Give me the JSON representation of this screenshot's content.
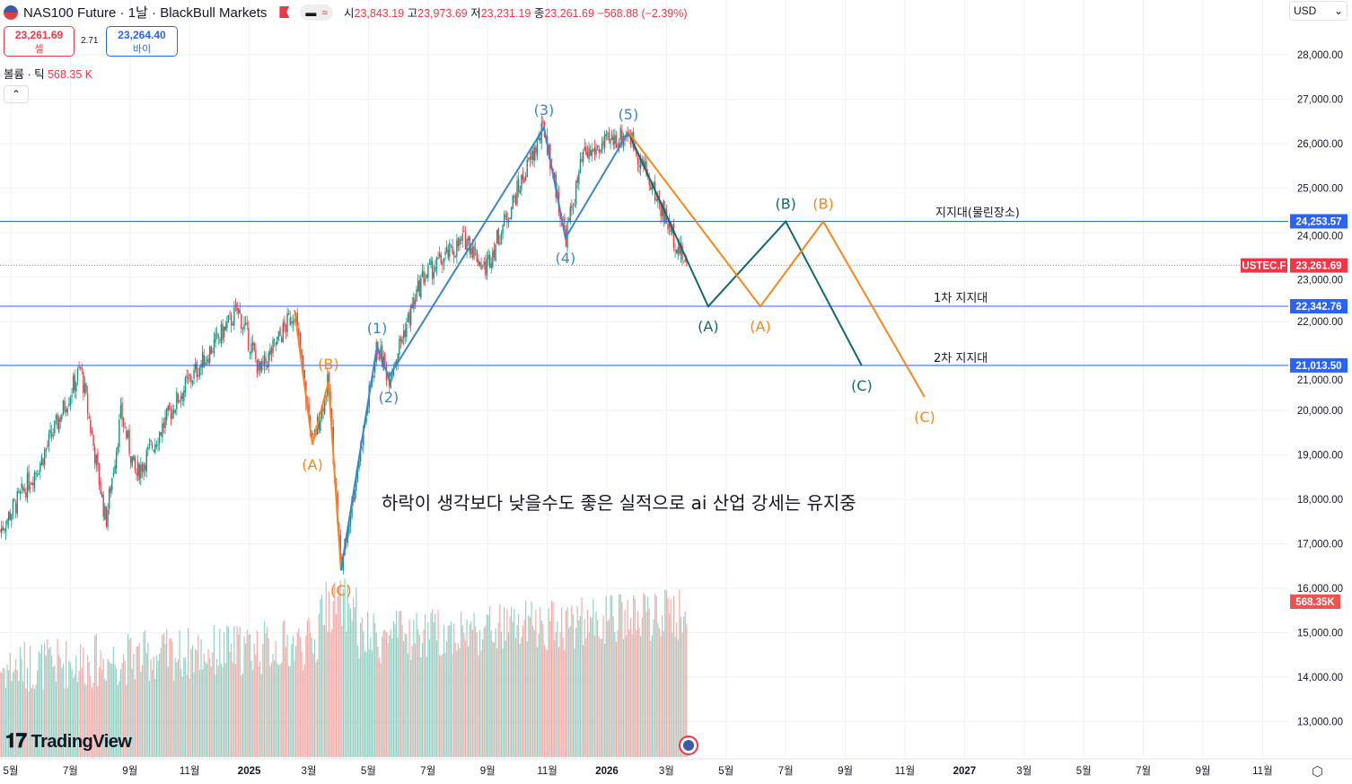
{
  "header": {
    "symbol": "NAS100 Future · 1날 · BlackBull Markets",
    "open_label": "시",
    "open": "23,843.19",
    "high_label": "고",
    "high": "23,973.69",
    "low_label": "저",
    "low": "23,231.19",
    "close_label": "종",
    "close": "23,261.69",
    "change": "−568.88 (−2.39%)"
  },
  "trade": {
    "sell_price": "23,261.69",
    "sell_label": "셀",
    "spread": "2.71",
    "buy_price": "23,264.40",
    "buy_label": "바이"
  },
  "volume": {
    "label": "볼륨 · 틱",
    "value": "568.35 K"
  },
  "currency": "USD",
  "annotation": "하락이 생각보다 낮을수도 좋은 실적으로 ai 산업 강세는 유지중",
  "zones": [
    {
      "label": "지지대(물린장소)",
      "price": 24253.57,
      "tag": "24,253.57"
    },
    {
      "label": "1차 지지대",
      "price": 22342.76,
      "tag": "22,342.76"
    },
    {
      "label": "2차 지지대",
      "price": 21013.5,
      "tag": "21,013.50"
    }
  ],
  "last_price": {
    "symbol": "USTEC.F",
    "tag": "23,261.69",
    "price": 23261.69
  },
  "volume_tag": "568.35K",
  "logo": "TradingView",
  "colors": {
    "up": "#089981",
    "down": "#f23645",
    "zone": "#2962ff",
    "blue_wave": "#3d85c6",
    "teal_wave": "#0e6b6b",
    "orange_wave": "#f7861b"
  },
  "chart_data": {
    "type": "candlestick",
    "title": "NAS100 Future · 1날",
    "x_unit": "months since 2024-05",
    "price_axis": {
      "ticks": [
        28000,
        27000,
        26000,
        25000,
        24000,
        23000,
        22000,
        21000,
        20000,
        19000,
        18000,
        17000,
        16000,
        15000,
        14000,
        13000
      ],
      "labels": [
        "28,000.00",
        "27,000.00",
        "26,000.00",
        "25,000.00",
        "24,000.00",
        "23,000.00",
        "22,000.00",
        "21,000.00",
        "20,000.00",
        "19,000.00",
        "18,000.00",
        "17,000.00",
        "16,000.00",
        "15,000.00",
        "14,000.00",
        "13,000.00"
      ]
    },
    "time_axis": [
      {
        "m": 0,
        "label": "5월"
      },
      {
        "m": 2,
        "label": "7월"
      },
      {
        "m": 4,
        "label": "9월"
      },
      {
        "m": 6,
        "label": "11월"
      },
      {
        "m": 8,
        "label": "2025"
      },
      {
        "m": 10,
        "label": "3월"
      },
      {
        "m": 12,
        "label": "5월"
      },
      {
        "m": 14,
        "label": "7월"
      },
      {
        "m": 16,
        "label": "9월"
      },
      {
        "m": 18,
        "label": "11월"
      },
      {
        "m": 20,
        "label": "2026"
      },
      {
        "m": 22,
        "label": "3월"
      },
      {
        "m": 24,
        "label": "5월"
      },
      {
        "m": 26,
        "label": "7월"
      },
      {
        "m": 28,
        "label": "9월"
      },
      {
        "m": 30,
        "label": "11월"
      },
      {
        "m": 32,
        "label": "2027"
      },
      {
        "m": 34,
        "label": "3월"
      },
      {
        "m": 36,
        "label": "5월"
      },
      {
        "m": 38,
        "label": "7월"
      },
      {
        "m": 40,
        "label": "9월"
      },
      {
        "m": 42,
        "label": "11월"
      }
    ],
    "price_path": [
      [
        -0.36,
        17300
      ],
      [
        0.99,
        18830
      ],
      [
        2.35,
        20950
      ],
      [
        3.19,
        17500
      ],
      [
        3.7,
        19940
      ],
      [
        4.2,
        18530
      ],
      [
        5.66,
        20340
      ],
      [
        7.62,
        22260
      ],
      [
        8.37,
        20850
      ],
      [
        9.52,
        22260
      ],
      [
        10.12,
        19230
      ],
      [
        10.66,
        20650
      ],
      [
        11.08,
        16400
      ],
      [
        12.29,
        21450
      ],
      [
        12.68,
        20750
      ],
      [
        13.8,
        22970
      ],
      [
        15.3,
        23880
      ],
      [
        15.9,
        23170
      ],
      [
        17.89,
        26360
      ],
      [
        18.61,
        23880
      ],
      [
        19.2,
        25700
      ],
      [
        20.72,
        26260
      ],
      [
        22.68,
        23230
      ]
    ],
    "waves": [
      {
        "name": "correction-2025",
        "color": "orange_wave",
        "points": [
          [
            9.52,
            22260
          ],
          [
            10.12,
            19230
          ],
          [
            10.66,
            20650
          ],
          [
            11.08,
            16400
          ]
        ],
        "labels": [
          null,
          "(A)",
          "(B)",
          "(C)"
        ],
        "pos": [
          null,
          "below",
          "above",
          "below"
        ]
      },
      {
        "name": "impulse",
        "color": "blue_wave",
        "points": [
          [
            11.08,
            16400
          ],
          [
            12.29,
            21450
          ],
          [
            12.68,
            20750
          ],
          [
            17.89,
            26360
          ],
          [
            18.61,
            23880
          ],
          [
            20.72,
            26260
          ]
        ],
        "labels": [
          null,
          "(1)",
          "(2)",
          "(3)",
          "(4)",
          "(5)"
        ],
        "pos": [
          null,
          "above",
          "below",
          "above",
          "below",
          "above"
        ]
      },
      {
        "name": "projection-teal",
        "color": "teal_wave",
        "points": [
          [
            20.72,
            26260
          ],
          [
            23.4,
            22340
          ],
          [
            26.0,
            24250
          ],
          [
            28.55,
            21010
          ]
        ],
        "labels": [
          null,
          "(A)",
          "(B)",
          "(C)"
        ],
        "pos": [
          null,
          "below",
          "above",
          "below"
        ]
      },
      {
        "name": "projection-orange",
        "color": "orange_wave",
        "points": [
          [
            20.72,
            26260
          ],
          [
            25.15,
            22340
          ],
          [
            27.26,
            24250
          ],
          [
            30.66,
            20300
          ]
        ],
        "labels": [
          null,
          "(A)",
          "(B)",
          "(C)"
        ],
        "pos": [
          null,
          "below",
          "above",
          "below"
        ]
      }
    ]
  }
}
